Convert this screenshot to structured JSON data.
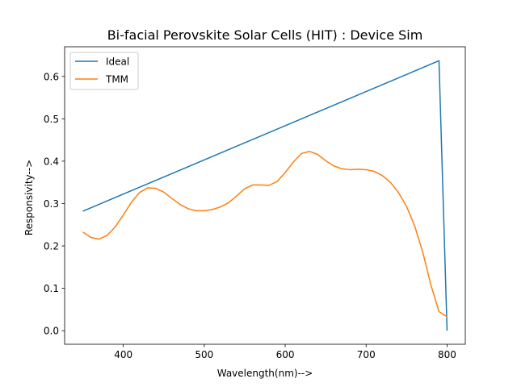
{
  "chart_data": {
    "type": "line",
    "title": "Bi-facial Perovskite Solar Cells (HIT) : Device Sim",
    "xlabel": "Wavelength(nm)-->",
    "ylabel": "Responsivity-->",
    "xlim": [
      327.5,
      822.5
    ],
    "ylim": [
      -0.032,
      0.67
    ],
    "xticks": [
      400,
      500,
      600,
      700,
      800
    ],
    "yticks": [
      0.0,
      0.1,
      0.2,
      0.3,
      0.4,
      0.5,
      0.6
    ],
    "ytick_labels": [
      "0.0",
      "0.1",
      "0.2",
      "0.3",
      "0.4",
      "0.5",
      "0.6"
    ],
    "grid": false,
    "legend_position": "upper-left",
    "series": [
      {
        "name": "Ideal",
        "color": "#1f77b4",
        "x": [
          350,
          790,
          800
        ],
        "y": [
          0.282,
          0.637,
          0.0
        ]
      },
      {
        "name": "TMM",
        "color": "#ff7f0e",
        "x": [
          350,
          360,
          370,
          380,
          390,
          400,
          410,
          420,
          430,
          440,
          450,
          460,
          470,
          480,
          490,
          500,
          510,
          520,
          530,
          540,
          550,
          560,
          570,
          580,
          590,
          600,
          610,
          620,
          630,
          640,
          650,
          660,
          670,
          680,
          690,
          700,
          710,
          720,
          730,
          740,
          750,
          760,
          770,
          780,
          790,
          800
        ],
        "y": [
          0.233,
          0.22,
          0.216,
          0.225,
          0.245,
          0.273,
          0.303,
          0.326,
          0.337,
          0.336,
          0.327,
          0.312,
          0.298,
          0.288,
          0.283,
          0.283,
          0.286,
          0.292,
          0.302,
          0.318,
          0.335,
          0.344,
          0.344,
          0.343,
          0.352,
          0.373,
          0.398,
          0.418,
          0.423,
          0.416,
          0.401,
          0.389,
          0.382,
          0.38,
          0.381,
          0.38,
          0.376,
          0.366,
          0.35,
          0.326,
          0.293,
          0.247,
          0.185,
          0.108,
          0.045,
          0.033
        ]
      }
    ]
  }
}
